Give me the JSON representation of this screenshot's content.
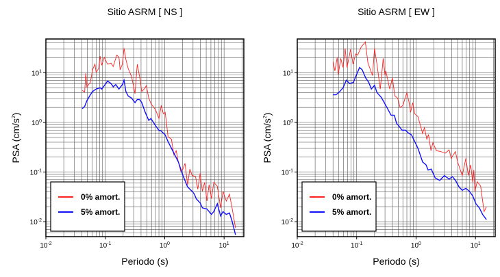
{
  "chart_data": [
    {
      "type": "line",
      "title": "Sitio ASRM [ NS ]",
      "xlabel": "Periodo (s)",
      "ylabel": {
        "text": "PSA (cm/s",
        "sup": "2",
        "close": ")"
      },
      "xscale": "log",
      "yscale": "log",
      "xlim": [
        0.01,
        21.5
      ],
      "ylim": [
        0.005,
        48
      ],
      "grid": true,
      "legend_position": "bottom-left",
      "xticks": [
        {
          "base": "10",
          "exp": "-2",
          "v": 0.01
        },
        {
          "base": "10",
          "exp": "-1",
          "v": 0.1
        },
        {
          "base": "10",
          "exp": "0",
          "v": 1
        },
        {
          "base": "10",
          "exp": "1",
          "v": 10
        }
      ],
      "yticks": [
        {
          "base": "10",
          "exp": "-2",
          "v": 0.01
        },
        {
          "base": "10",
          "exp": "-1",
          "v": 0.1
        },
        {
          "base": "10",
          "exp": "0",
          "v": 1
        },
        {
          "base": "10",
          "exp": "1",
          "v": 10
        }
      ],
      "series": [
        {
          "name": "0% amort.",
          "color": "#ff2020",
          "x": [
            0.041,
            0.045,
            0.047,
            0.049,
            0.056,
            0.061,
            0.067,
            0.07,
            0.077,
            0.082,
            0.087,
            0.096,
            0.109,
            0.125,
            0.136,
            0.156,
            0.17,
            0.178,
            0.194,
            0.207,
            0.222,
            0.243,
            0.277,
            0.316,
            0.345,
            0.378,
            0.412,
            0.45,
            0.492,
            0.54,
            0.588,
            0.702,
            0.802,
            0.875,
            0.95,
            1.02,
            1.14,
            1.3,
            1.43,
            1.56,
            1.7,
            1.86,
            2.03,
            2.2,
            2.43,
            2.65,
            2.9,
            3.3,
            3.61,
            3.95,
            4.31,
            4.7,
            5.15,
            5.6,
            6.14,
            6.7,
            7.67,
            8.75,
            9.6,
            10.9,
            12.3,
            13.6,
            15.6
          ],
          "y": [
            4.4,
            4.1,
            9.8,
            5.2,
            6.4,
            11.5,
            14.9,
            10.3,
            12.1,
            21.6,
            14.2,
            20.5,
            14.9,
            15.7,
            13.4,
            22.8,
            20.5,
            11.5,
            14.9,
            31.3,
            18.5,
            12.1,
            8.4,
            3.8,
            14.9,
            8.4,
            4.2,
            4.7,
            5.5,
            3.1,
            2.4,
            1.8,
            1.2,
            2.2,
            1.5,
            1.6,
            0.51,
            0.46,
            0.22,
            0.27,
            0.16,
            0.104,
            0.115,
            0.15,
            0.055,
            0.115,
            0.085,
            0.082,
            0.045,
            0.094,
            0.041,
            0.062,
            0.026,
            0.056,
            0.029,
            0.062,
            0.052,
            0.019,
            0.041,
            0.026,
            0.036,
            0.019,
            0.0074
          ]
        },
        {
          "name": "5% amort.",
          "color": "#1010ff",
          "x": [
            0.041,
            0.045,
            0.049,
            0.056,
            0.061,
            0.07,
            0.082,
            0.087,
            0.096,
            0.109,
            0.125,
            0.136,
            0.15,
            0.17,
            0.194,
            0.207,
            0.222,
            0.243,
            0.277,
            0.316,
            0.345,
            0.378,
            0.412,
            0.47,
            0.54,
            0.588,
            0.702,
            0.802,
            0.875,
            1.02,
            1.14,
            1.43,
            1.7,
            2.03,
            2.43,
            2.9,
            3.16,
            3.4,
            3.95,
            4.31,
            5.15,
            6.1,
            6.7,
            7.7,
            8.75,
            9.6,
            10.9,
            12.3,
            13.6,
            15.6
          ],
          "y": [
            1.9,
            2.1,
            2.75,
            3.6,
            4.2,
            4.7,
            5.0,
            4.7,
            5.5,
            6.8,
            6.1,
            5.2,
            5.8,
            4.7,
            5.8,
            7.1,
            4.2,
            3.4,
            3.1,
            2.5,
            2.9,
            2.9,
            2.5,
            1.6,
            1.1,
            1.2,
            0.86,
            0.69,
            0.67,
            0.56,
            0.41,
            0.24,
            0.16,
            0.085,
            0.05,
            0.041,
            0.036,
            0.029,
            0.024,
            0.019,
            0.018,
            0.014,
            0.016,
            0.023,
            0.013,
            0.016,
            0.014,
            0.015,
            0.0103,
            0.0054
          ]
        }
      ]
    },
    {
      "type": "line",
      "title": "Sitio ASRM [ EW ]",
      "xlabel": "Periodo (s)",
      "ylabel": {
        "text": "PSA (cm/s",
        "sup": "2",
        "close": ")"
      },
      "xscale": "log",
      "yscale": "log",
      "xlim": [
        0.01,
        21.5
      ],
      "ylim": [
        0.005,
        48
      ],
      "grid": true,
      "legend_position": "bottom-left",
      "xticks": [
        {
          "base": "10",
          "exp": "-2",
          "v": 0.01
        },
        {
          "base": "10",
          "exp": "-1",
          "v": 0.1
        },
        {
          "base": "10",
          "exp": "0",
          "v": 1
        },
        {
          "base": "10",
          "exp": "1",
          "v": 10
        }
      ],
      "yticks": [
        {
          "base": "10",
          "exp": "-2",
          "v": 0.01
        },
        {
          "base": "10",
          "exp": "-1",
          "v": 0.1
        },
        {
          "base": "10",
          "exp": "0",
          "v": 1
        },
        {
          "base": "10",
          "exp": "1",
          "v": 10
        }
      ],
      "series": [
        {
          "name": "0% amort.",
          "color": "#ff2020",
          "x": [
            0.04,
            0.043,
            0.047,
            0.049,
            0.054,
            0.059,
            0.064,
            0.069,
            0.079,
            0.087,
            0.096,
            0.104,
            0.119,
            0.14,
            0.155,
            0.185,
            0.2,
            0.22,
            0.25,
            0.28,
            0.3,
            0.31,
            0.36,
            0.4,
            0.44,
            0.49,
            0.54,
            0.6,
            0.7,
            0.76,
            0.81,
            0.88,
            0.95,
            1.08,
            1.29,
            1.38,
            1.52,
            1.62,
            1.78,
            1.92,
            2.2,
            2.6,
            3.1,
            3.6,
            3.9,
            4.6,
            5.0,
            6.0,
            6.9,
            7.6,
            8.3,
            9.0,
            9.4,
            9.8,
            10.7,
            12.2,
            14.0,
            15.3
          ],
          "y": [
            16.9,
            10.9,
            20.5,
            9.3,
            19.5,
            12.8,
            31,
            12.8,
            29.6,
            14.9,
            24,
            22.8,
            33,
            42,
            15.7,
            8.8,
            31,
            14.9,
            4.7,
            19.5,
            8.8,
            10.9,
            4.7,
            7.9,
            3.4,
            3.1,
            2.0,
            2.2,
            4.0,
            2.6,
            1.6,
            2.5,
            1.5,
            1.3,
            0.6,
            0.78,
            0.46,
            0.57,
            0.27,
            0.39,
            0.27,
            0.26,
            0.24,
            0.28,
            0.19,
            0.26,
            0.16,
            0.085,
            0.19,
            0.085,
            0.14,
            0.062,
            0.11,
            0.041,
            0.064,
            0.052,
            0.016,
            0.02
          ]
        },
        {
          "name": "5% amort.",
          "color": "#1010ff",
          "x": [
            0.04,
            0.045,
            0.052,
            0.059,
            0.067,
            0.076,
            0.088,
            0.1,
            0.112,
            0.124,
            0.142,
            0.16,
            0.177,
            0.2,
            0.22,
            0.26,
            0.31,
            0.38,
            0.43,
            0.47,
            0.51,
            0.58,
            0.66,
            0.76,
            0.84,
            0.95,
            1.08,
            1.29,
            1.47,
            1.6,
            1.8,
            2.1,
            2.5,
            3.0,
            3.6,
            4.1,
            4.6,
            5.3,
            6.0,
            6.9,
            7.9,
            9.0,
            10.2,
            11.6,
            13.2,
            15.3
          ],
          "y": [
            3.6,
            3.6,
            4.2,
            5.0,
            7.1,
            6.1,
            6.4,
            9.3,
            12.8,
            11.5,
            7.9,
            6.4,
            4.7,
            5.6,
            4.0,
            3.2,
            2.2,
            1.4,
            1.4,
            0.96,
            0.86,
            0.7,
            0.7,
            0.6,
            0.56,
            0.41,
            0.3,
            0.16,
            0.14,
            0.11,
            0.115,
            0.076,
            0.068,
            0.085,
            0.072,
            0.081,
            0.068,
            0.05,
            0.043,
            0.047,
            0.041,
            0.033,
            0.023,
            0.019,
            0.014,
            0.011
          ]
        }
      ]
    }
  ]
}
